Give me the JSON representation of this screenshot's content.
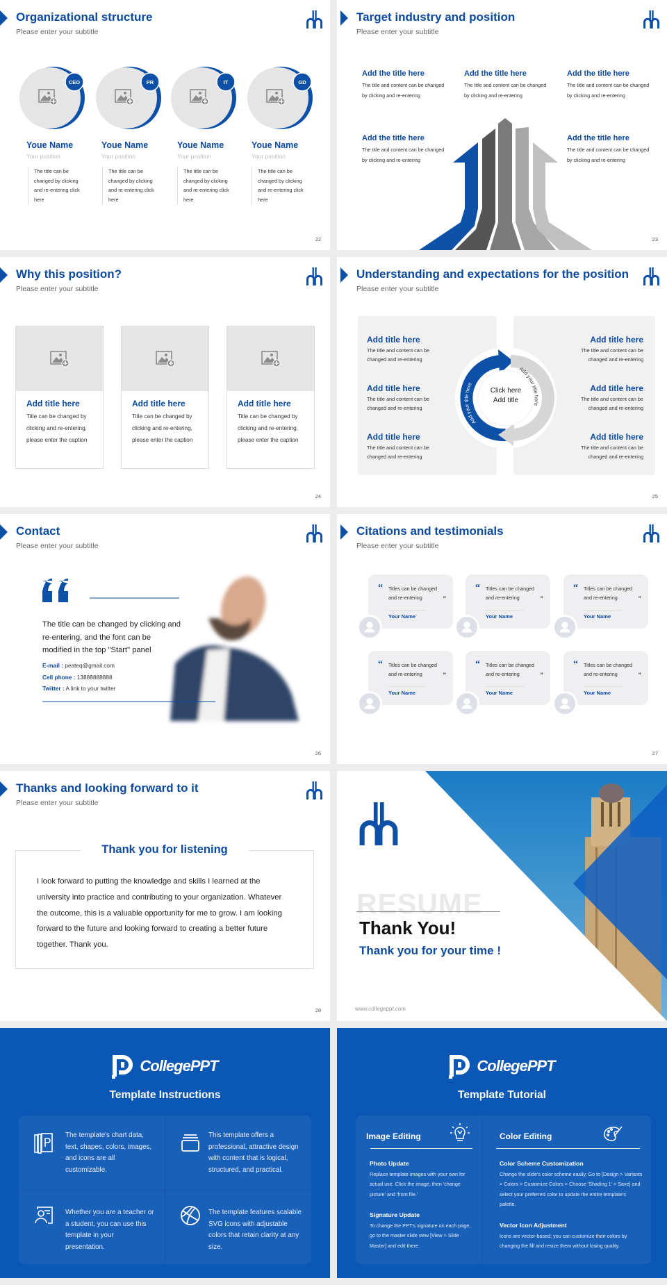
{
  "colors": {
    "brand_blue": "#0c4aa0",
    "dark_slide_bg": "#0b57b5",
    "card_gray": "#efeff1"
  },
  "common": {
    "subtitle": "Please enter your subtitle",
    "logo_icon": "university-logo-icon"
  },
  "s22": {
    "title": "Organizational structure",
    "page": "22",
    "members": [
      {
        "badge": "CEO",
        "name": "Youe Name",
        "position": "Your position",
        "text": "The title can be changed by clicking and re-entering click here"
      },
      {
        "badge": "PR",
        "name": "Youe Name",
        "position": "Your position",
        "text": "The title can be changed by clicking and re-entering click here"
      },
      {
        "badge": "IT",
        "name": "Youe Name",
        "position": "Your position",
        "text": "The title can be changed by clicking and re-entering click here"
      },
      {
        "badge": "GD",
        "name": "Youe Name",
        "position": "Your position",
        "text": "The title can be changed by clicking and re-entering click here"
      }
    ]
  },
  "s23": {
    "title": "Target industry and position",
    "page": "23",
    "items": [
      {
        "title": "Add the title here",
        "text": "The title and content can be changed by clicking and re-entering"
      },
      {
        "title": "Add the title here",
        "text": "The title and content can be changed by clicking and re-entering"
      },
      {
        "title": "Add the title here",
        "text": "The title and content can be changed by clicking and re-entering"
      },
      {
        "title": "Add the title here",
        "text": "The title and content can be changed by clicking and re-entering"
      },
      {
        "title": "Add the title here",
        "text": "The title and content can be changed by clicking and re-entering"
      }
    ]
  },
  "s24": {
    "title": "Why this position?",
    "page": "24",
    "cards": [
      {
        "title": "Add title here",
        "text": "Title can be changed by clicking and re-entering, please enter the caption"
      },
      {
        "title": "Add title here",
        "text": "Title can be changed by clicking and re-entering, please enter the caption"
      },
      {
        "title": "Add title here",
        "text": "Title can be changed by clicking and re-entering, please enter the caption"
      }
    ]
  },
  "s25": {
    "title": "Understanding and expectations for the position",
    "page": "25",
    "center": "Click here Add title",
    "arc_left": "Add your title here",
    "arc_right": "Add your title here",
    "items": [
      {
        "title": "Add title here",
        "text": "The title and content can be changed and re-entering"
      },
      {
        "title": "Add title here",
        "text": "The title and content can be changed and re-entering"
      },
      {
        "title": "Add title here",
        "text": "The title and content can be changed and re-entering"
      },
      {
        "title": "Add title here",
        "text": "The title and content can be changed and re-entering"
      },
      {
        "title": "Add title here",
        "text": "The title and content can be changed and re-entering"
      },
      {
        "title": "Add title here",
        "text": "The title and content can be changed and re-entering"
      }
    ]
  },
  "s26": {
    "title": "Contact",
    "page": "26",
    "body": "The title can be changed by clicking and re-entering, and the font can be modified in the top \"Start\" panel",
    "email_label": "E-mail :",
    "email": "peateq@gmail.com",
    "phone_label": "Cell phone  :",
    "phone": "13888888888",
    "twitter_label": "Twitter :",
    "twitter": "A link to your twitter"
  },
  "s27": {
    "title": "Citations and testimonials",
    "page": "27",
    "quotes": [
      {
        "text": "Titles can be changed and re-entering",
        "name": "Your Name"
      },
      {
        "text": "Titles can be changed and re-entering",
        "name": "Your Name"
      },
      {
        "text": "Titles can be changed and re-entering",
        "name": "Your Name"
      },
      {
        "text": "Titles can be changed and re-entering",
        "name": "Your Name"
      },
      {
        "text": "Titles can be changed and re-entering",
        "name": "Your Name"
      },
      {
        "text": "Titles can be changed and re-entering",
        "name": "Your Name"
      }
    ]
  },
  "s28": {
    "title": "Thanks and looking forward to it",
    "page": "28",
    "box_title": "Thank you for listening",
    "body": "I look forward to putting the knowledge and skills I learned at the university into practice and contributing to your organization. Whatever the outcome, this is a valuable opportunity for me to grow. I am looking forward to the future and looking forward to creating a better future together. Thank you."
  },
  "s29": {
    "watermark": "RESUME",
    "title": "Thank You!",
    "subtitle": "Thank you for your time !",
    "url": "www.collegeppt.com"
  },
  "s30": {
    "brand": "CollegePPT",
    "heading": "Template Instructions",
    "items": [
      {
        "icon": "presentation-file-icon",
        "text": "The template's chart data, text, shapes, colors, images, and icons are all customizable."
      },
      {
        "icon": "layers-icon",
        "text": "This template offers a professional, attractive design with content that is logical, structured, and practical."
      },
      {
        "icon": "teacher-board-icon",
        "text": "Whether you are a teacher or a student, you can use this template in your presentation."
      },
      {
        "icon": "basketball-icon",
        "text": "The template features scalable SVG icons with adjustable colors that retain clarity at any size."
      }
    ]
  },
  "s31": {
    "brand": "CollegePPT",
    "heading": "Template Tutorial",
    "left": {
      "heading": "Image Editing",
      "icon": "lightbulb-icon",
      "sections": [
        {
          "title": "Photo Update",
          "text": "Replace template images with your own for actual use. Click the image, then 'change picture' and 'from file.'"
        },
        {
          "title": "Signature Update",
          "text": "To change the PPT's signature on each page, go to the master slide view [View > Slide Master] and edit there."
        }
      ]
    },
    "right": {
      "heading": "Color Editing",
      "icon": "palette-icon",
      "sections": [
        {
          "title": "Color Scheme Customization",
          "text": "Change the slide's color scheme easily. Go to [Design > Variants > Colors > Customize Colors > Choose 'Shading 1' > Save] and select your preferred color to update the entire template's palette."
        },
        {
          "title": "Vector Icon Adjustment",
          "text": "Icons are vector-based; you can customize their colors by changing the fill and resize them without losing quality."
        }
      ]
    }
  }
}
